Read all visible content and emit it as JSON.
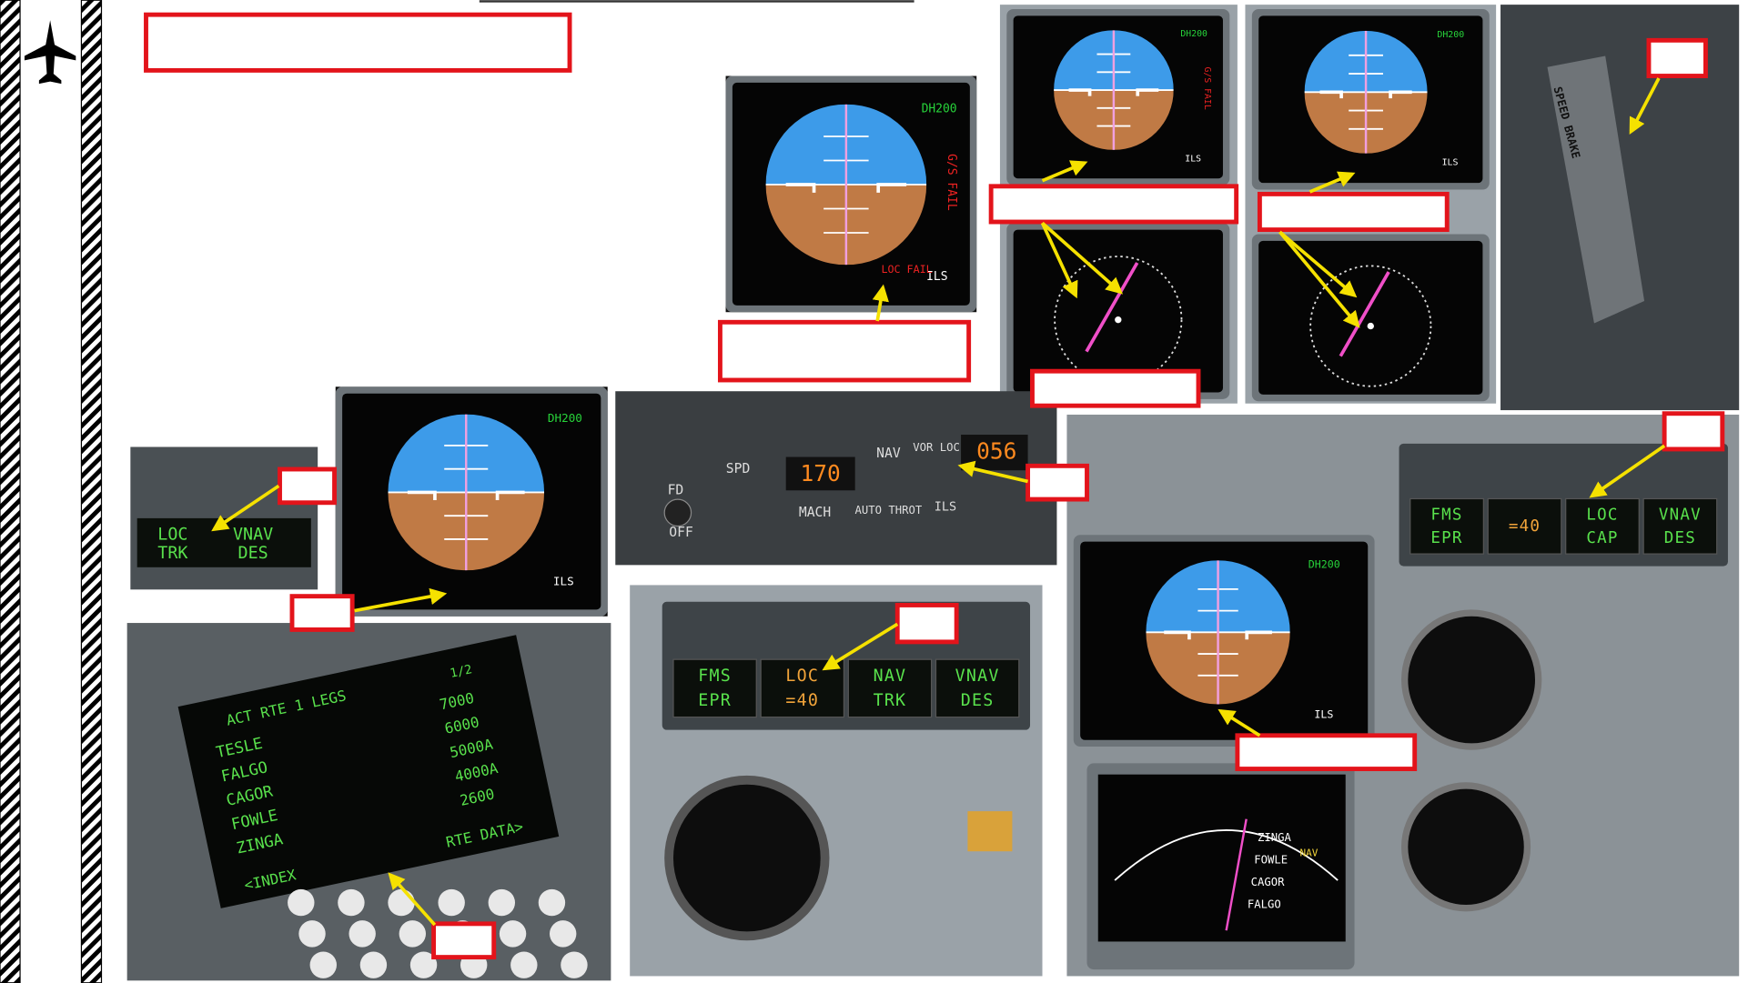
{
  "adi_labels": {
    "dh": "DH200",
    "ils": "ILS",
    "gs_fail": "G/S FAIL",
    "loc_fail": "LOC FAIL"
  },
  "fma_small": {
    "cells": [
      [
        "LOC",
        "TRK"
      ],
      [
        "VNAV",
        "DES"
      ]
    ]
  },
  "mode_panel": {
    "spd": "SPD",
    "speed": "170",
    "nav": "NAV",
    "vor_loc": "VOR LOC",
    "course": "056",
    "mach": "MACH",
    "auto_throt": "AUTO THROT",
    "ils": "ILS",
    "fd": "FD",
    "off": "OFF"
  },
  "fma_mid": {
    "cells": [
      [
        "FMS",
        "EPR"
      ],
      [
        "LOC",
        "=40"
      ],
      [
        "NAV",
        "TRK"
      ],
      [
        "VNAV",
        "DES"
      ]
    ]
  },
  "fma_right": {
    "cells": [
      [
        "FMS",
        "EPR"
      ],
      [
        "=40"
      ],
      [
        "LOC",
        "CAP"
      ],
      [
        "VNAV",
        "DES"
      ]
    ]
  },
  "cdu": {
    "title": "ACT RTE 1 LEGS",
    "page": "1/2",
    "fixes": [
      "TESLE",
      "FALGO",
      "CAGOR",
      "FOWLE",
      "ZINGA"
    ],
    "alts": [
      "7000",
      "6000",
      "5000A",
      "4000A",
      "2600"
    ],
    "index": "<INDEX",
    "rte_data": "RTE DATA>"
  },
  "speed_brake": "SPEED BRAKE",
  "nd": {
    "mode": "NAV",
    "fixes": [
      "ZINGA",
      "FOWLE",
      "CAGOR",
      "FALGO"
    ]
  }
}
